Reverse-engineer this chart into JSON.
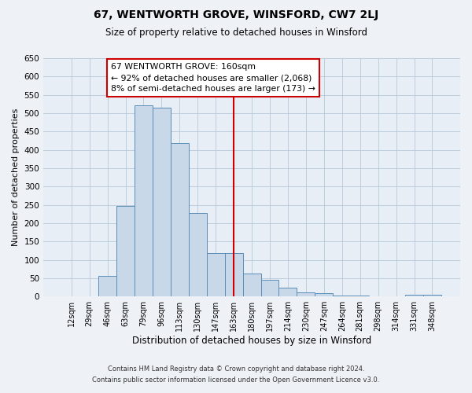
{
  "title": "67, WENTWORTH GROVE, WINSFORD, CW7 2LJ",
  "subtitle": "Size of property relative to detached houses in Winsford",
  "xlabel": "Distribution of detached houses by size in Winsford",
  "ylabel": "Number of detached properties",
  "bar_labels": [
    "12sqm",
    "29sqm",
    "46sqm",
    "63sqm",
    "79sqm",
    "96sqm",
    "113sqm",
    "130sqm",
    "147sqm",
    "163sqm",
    "180sqm",
    "197sqm",
    "214sqm",
    "230sqm",
    "247sqm",
    "264sqm",
    "281sqm",
    "298sqm",
    "314sqm",
    "331sqm",
    "348sqm"
  ],
  "bar_values": [
    0,
    0,
    57,
    248,
    522,
    515,
    418,
    228,
    118,
    118,
    63,
    45,
    23,
    12,
    8,
    2,
    2,
    1,
    0,
    5,
    5
  ],
  "bar_color": "#c8d8e8",
  "bar_edge_color": "#5b8db8",
  "vline_x": 9.0,
  "vline_color": "#cc0000",
  "annotation_title": "67 WENTWORTH GROVE: 160sqm",
  "annotation_line1": "← 92% of detached houses are smaller (2,068)",
  "annotation_line2": "8% of semi-detached houses are larger (173) →",
  "annotation_box_color": "#ffffff",
  "annotation_box_edge": "#cc0000",
  "ylim": [
    0,
    650
  ],
  "yticks": [
    0,
    50,
    100,
    150,
    200,
    250,
    300,
    350,
    400,
    450,
    500,
    550,
    600,
    650
  ],
  "footer_line1": "Contains HM Land Registry data © Crown copyright and database right 2024.",
  "footer_line2": "Contains public sector information licensed under the Open Government Licence v3.0.",
  "bg_color": "#eef2f7",
  "plot_bg_color": "#e8eef5"
}
